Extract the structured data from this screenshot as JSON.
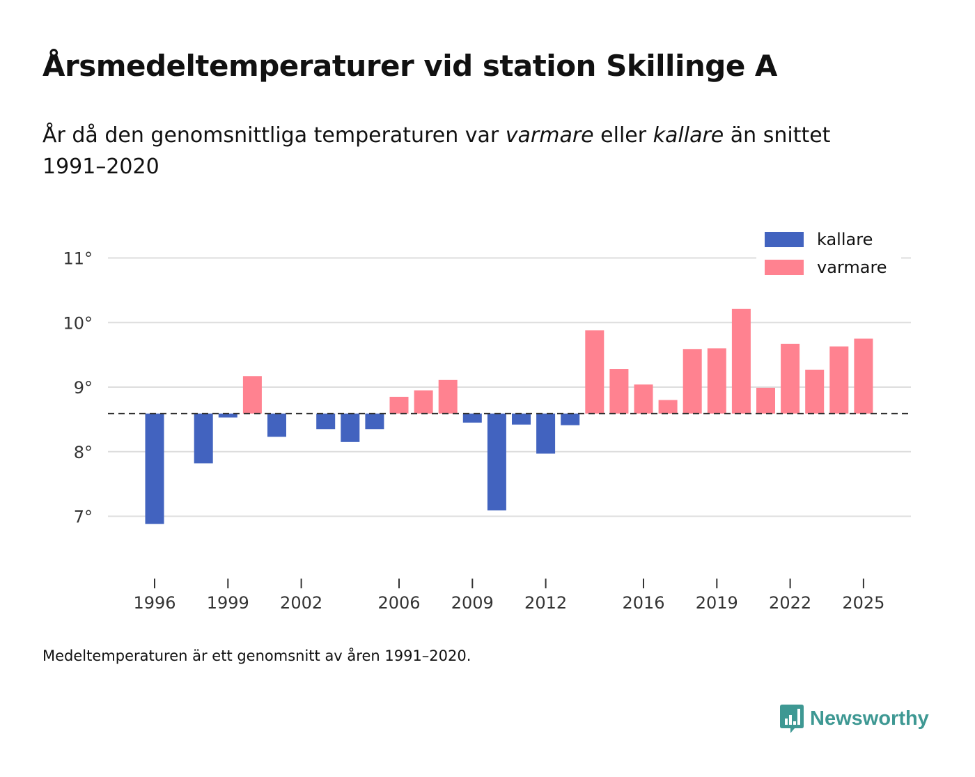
{
  "header": {
    "title": "Årsmedeltemperaturer vid station Skillinge A",
    "subtitle_part1": "År då den genomsnittliga temperaturen var ",
    "subtitle_warm": "varmare",
    "subtitle_part2": " eller ",
    "subtitle_cold": "kallare",
    "subtitle_part3": " än snittet 1991–2020"
  },
  "footer": {
    "note": "Medeltemperaturen är ett genomsnitt av åren 1991–2020.",
    "brand": "Newsworthy"
  },
  "colors": {
    "cold": "#4263bf",
    "warm": "#ff8290",
    "grid": "#dddddd",
    "baseline": "#333333",
    "brand": "#3e9893"
  },
  "chart_data": {
    "type": "bar",
    "title": "Årsmedeltemperaturer vid station Skillinge A",
    "xlabel": "",
    "ylabel": "",
    "baseline": 8.59,
    "ylim": [
      6.0,
      11.5
    ],
    "yticks": [
      7,
      8,
      9,
      10,
      11
    ],
    "ytick_suffix": "°",
    "xticks": [
      1996,
      1999,
      2002,
      2006,
      2009,
      2012,
      2016,
      2019,
      2022,
      2025
    ],
    "legend": [
      {
        "key": "cold",
        "label": "kallare"
      },
      {
        "key": "warm",
        "label": "varmare"
      }
    ],
    "legend_position": "top-right",
    "x": [
      1996,
      1998,
      1999,
      2000,
      2001,
      2003,
      2004,
      2005,
      2006,
      2007,
      2008,
      2009,
      2010,
      2011,
      2012,
      2013,
      2014,
      2015,
      2016,
      2017,
      2018,
      2019,
      2020,
      2021,
      2022,
      2023,
      2024,
      2025
    ],
    "values": [
      6.88,
      7.82,
      8.53,
      9.17,
      8.23,
      8.35,
      8.15,
      8.35,
      8.85,
      8.95,
      9.11,
      8.45,
      7.09,
      8.42,
      7.97,
      8.41,
      9.88,
      9.28,
      9.04,
      8.8,
      9.59,
      9.6,
      10.21,
      8.99,
      9.67,
      9.27,
      9.63,
      9.75
    ]
  }
}
